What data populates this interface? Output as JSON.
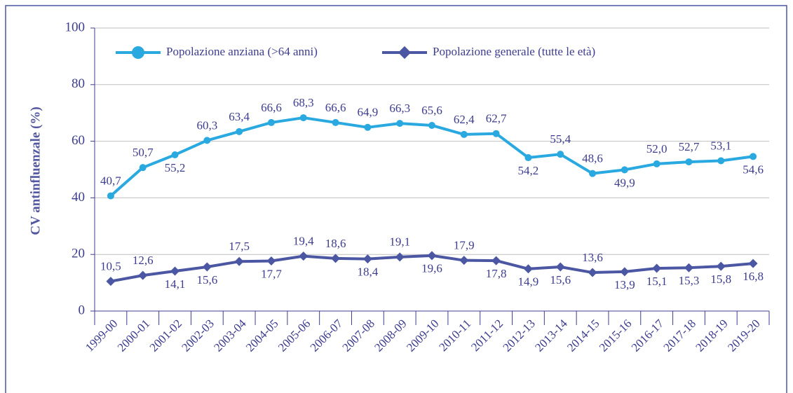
{
  "chart_data": {
    "type": "line",
    "y_label": "CV antinfluenzale (%)",
    "categories": [
      "1999-00",
      "2000-01",
      "2001-02",
      "2002-03",
      "2003-04",
      "2004-05",
      "2005-06",
      "2006-07",
      "2007-08",
      "2008-09",
      "2009-10",
      "2010-11",
      "2011-12",
      "2012-13",
      "2013-14",
      "2014-15",
      "2015-16",
      "2016-17",
      "2017-18",
      "2018-19",
      "2019-20"
    ],
    "series": [
      {
        "name": "Popolazione anziana (>64 anni)",
        "color": "#29a9e0",
        "marker": "circle",
        "values": [
          40.7,
          50.7,
          55.2,
          60.3,
          63.4,
          66.6,
          68.3,
          66.6,
          64.9,
          66.3,
          65.6,
          62.4,
          62.7,
          54.2,
          55.4,
          48.6,
          49.9,
          52.0,
          52.7,
          53.1,
          54.6
        ],
        "value_labels": [
          "40,7",
          "50,7",
          "55,2",
          "60,3",
          "63,4",
          "66,6",
          "68,3",
          "66,6",
          "64,9",
          "66,3",
          "65,6",
          "62,4",
          "62,7",
          "54,2",
          "55,4",
          "48,6",
          "49,9",
          "52,0",
          "52,7",
          "53,1",
          "54,6"
        ]
      },
      {
        "name": "Popolazione generale (tutte le età)",
        "color": "#4b57a3",
        "marker": "diamond",
        "values": [
          10.5,
          12.6,
          14.1,
          15.6,
          17.5,
          17.7,
          19.4,
          18.6,
          18.4,
          19.1,
          19.6,
          17.9,
          17.8,
          14.9,
          15.6,
          13.6,
          13.9,
          15.1,
          15.3,
          15.8,
          16.8
        ],
        "value_labels": [
          "10,5",
          "12,6",
          "14,1",
          "15,6",
          "17,5",
          "17,7",
          "19,4",
          "18,6",
          "18,4",
          "19,1",
          "19,6",
          "17,9",
          "17,8",
          "14,9",
          "15,6",
          "13,6",
          "13,9",
          "15,1",
          "15,3",
          "15,8",
          "16,8"
        ]
      }
    ],
    "ylim": [
      0,
      100
    ],
    "yticks": [
      0,
      20,
      40,
      60,
      80,
      100
    ],
    "grid": true,
    "legend": "top"
  }
}
